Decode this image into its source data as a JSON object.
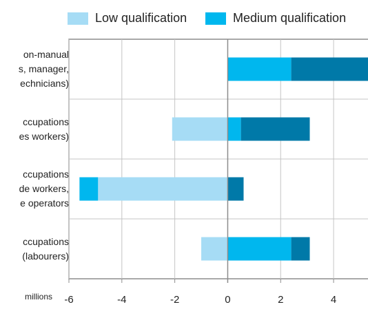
{
  "chart_data": {
    "type": "bar",
    "orientation": "horizontal",
    "stacked": "diverging",
    "xlabel": "millions",
    "xlim": [
      -6,
      5.3
    ],
    "xticks": [
      -6,
      -4,
      -2,
      0,
      2,
      4
    ],
    "grid": true,
    "legend_placement": "top",
    "categories": [
      [
        "on-manual",
        "s, manager,",
        "echnicians)"
      ],
      [
        "ccupations",
        "es workers)"
      ],
      [
        "ccupations",
        "de workers,",
        "e operators"
      ],
      [
        "ccupations",
        "(labourers)"
      ]
    ],
    "series": [
      {
        "name": "Low qualification",
        "color": "#a6dcf5",
        "values": [
          0,
          -2.1,
          -4.9,
          -1.0
        ]
      },
      {
        "name": "Medium qualification",
        "color": "#00b7ee",
        "values": [
          2.4,
          0.5,
          -0.7,
          2.4
        ]
      },
      {
        "color": "#0079a8",
        "values": [
          3.0,
          2.6,
          0.6,
          0.7
        ]
      }
    ]
  }
}
